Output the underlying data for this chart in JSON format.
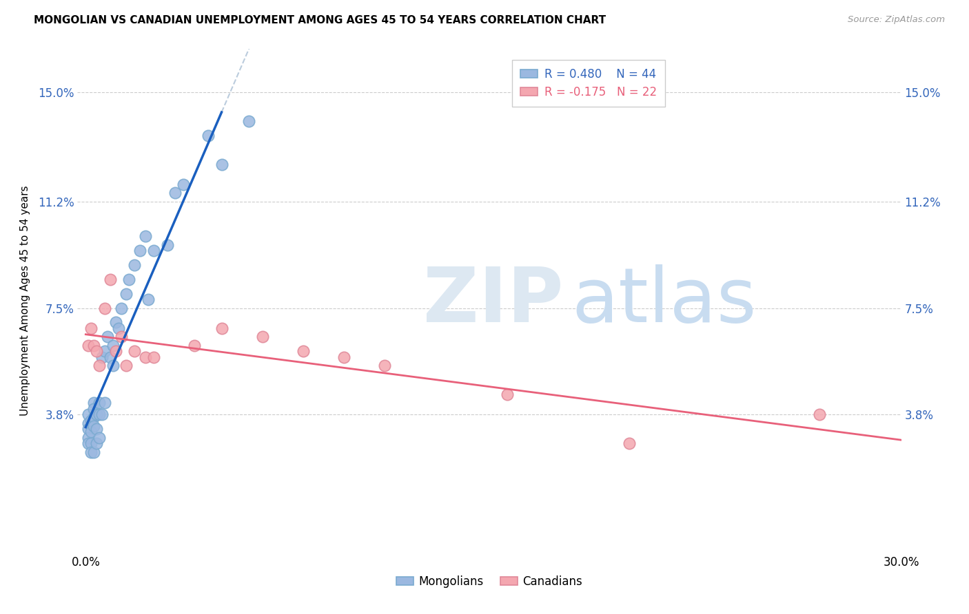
{
  "title": "MONGOLIAN VS CANADIAN UNEMPLOYMENT AMONG AGES 45 TO 54 YEARS CORRELATION CHART",
  "source": "Source: ZipAtlas.com",
  "ylabel": "Unemployment Among Ages 45 to 54 years",
  "xlim": [
    0.0,
    0.3
  ],
  "ylim": [
    -0.01,
    0.165
  ],
  "yticks": [
    0.038,
    0.075,
    0.112,
    0.15
  ],
  "ytick_labels": [
    "3.8%",
    "7.5%",
    "11.2%",
    "15.0%"
  ],
  "xticks": [
    0.0,
    0.05,
    0.1,
    0.15,
    0.2,
    0.25,
    0.3
  ],
  "xtick_labels": [
    "0.0%",
    "",
    "",
    "",
    "",
    "",
    "30.0%"
  ],
  "mongolian_color": "#9BB8E0",
  "canadian_color": "#F4A7B0",
  "mongolian_line_color": "#1A5FBF",
  "canadian_line_color": "#E8607A",
  "mongolian_x": [
    0.001,
    0.001,
    0.001,
    0.001,
    0.001,
    0.002,
    0.002,
    0.002,
    0.002,
    0.003,
    0.003,
    0.003,
    0.003,
    0.003,
    0.004,
    0.004,
    0.004,
    0.005,
    0.005,
    0.005,
    0.006,
    0.006,
    0.007,
    0.007,
    0.008,
    0.009,
    0.01,
    0.01,
    0.011,
    0.012,
    0.013,
    0.015,
    0.016,
    0.018,
    0.02,
    0.022,
    0.023,
    0.025,
    0.03,
    0.033,
    0.036,
    0.045,
    0.05,
    0.06
  ],
  "mongolian_y": [
    0.038,
    0.035,
    0.033,
    0.03,
    0.028,
    0.036,
    0.032,
    0.028,
    0.025,
    0.042,
    0.04,
    0.037,
    0.034,
    0.025,
    0.038,
    0.033,
    0.028,
    0.042,
    0.038,
    0.03,
    0.058,
    0.038,
    0.06,
    0.042,
    0.065,
    0.058,
    0.062,
    0.055,
    0.07,
    0.068,
    0.075,
    0.08,
    0.085,
    0.09,
    0.095,
    0.1,
    0.078,
    0.095,
    0.097,
    0.115,
    0.118,
    0.135,
    0.125,
    0.14
  ],
  "canadian_x": [
    0.001,
    0.002,
    0.003,
    0.004,
    0.005,
    0.007,
    0.009,
    0.011,
    0.013,
    0.015,
    0.018,
    0.022,
    0.025,
    0.04,
    0.05,
    0.065,
    0.08,
    0.095,
    0.11,
    0.155,
    0.2,
    0.27
  ],
  "canadian_y": [
    0.062,
    0.068,
    0.062,
    0.06,
    0.055,
    0.075,
    0.085,
    0.06,
    0.065,
    0.055,
    0.06,
    0.058,
    0.058,
    0.062,
    0.068,
    0.065,
    0.06,
    0.058,
    0.055,
    0.045,
    0.028,
    0.038
  ]
}
